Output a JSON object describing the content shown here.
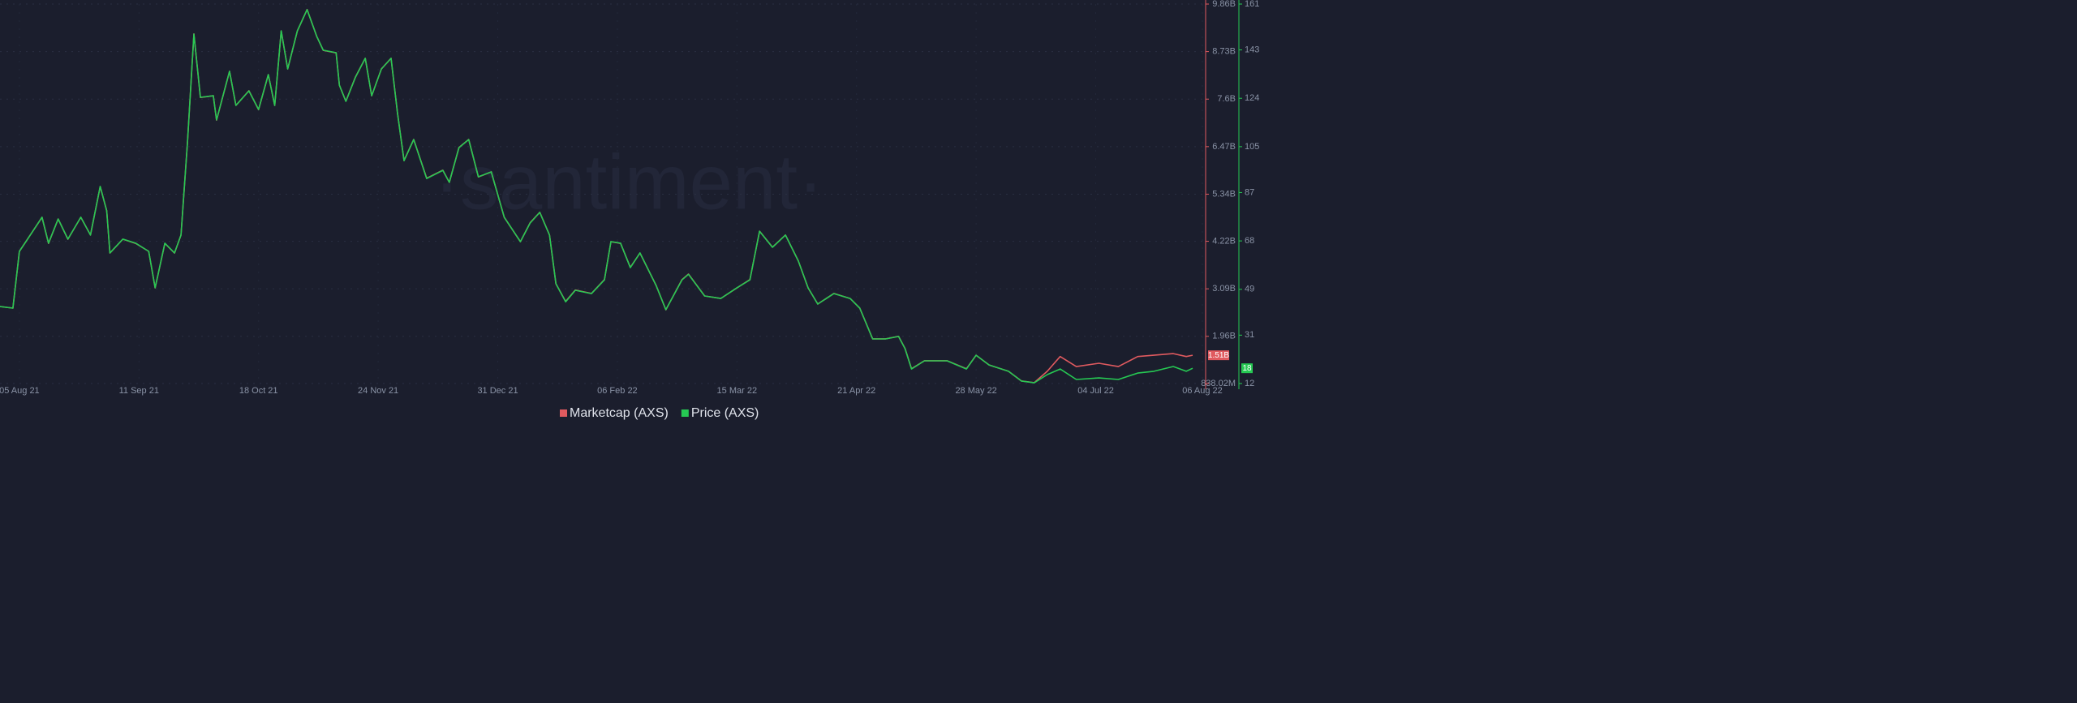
{
  "chart_data": {
    "type": "line",
    "watermark": "·santiment·",
    "x": [
      "2021-07-30",
      "2021-08-03",
      "2021-08-05",
      "2021-08-08",
      "2021-08-12",
      "2021-08-14",
      "2021-08-17",
      "2021-08-20",
      "2021-08-24",
      "2021-08-27",
      "2021-08-30",
      "2021-09-01",
      "2021-09-02",
      "2021-09-06",
      "2021-09-10",
      "2021-09-14",
      "2021-09-16",
      "2021-09-19",
      "2021-09-22",
      "2021-09-24",
      "2021-09-26",
      "2021-09-28",
      "2021-09-30",
      "2021-10-04",
      "2021-10-05",
      "2021-10-09",
      "2021-10-11",
      "2021-10-15",
      "2021-10-18",
      "2021-10-21",
      "2021-10-23",
      "2021-10-25",
      "2021-10-27",
      "2021-10-30",
      "2021-11-02",
      "2021-11-05",
      "2021-11-07",
      "2021-11-11",
      "2021-11-12",
      "2021-11-14",
      "2021-11-17",
      "2021-11-20",
      "2021-11-22",
      "2021-11-25",
      "2021-11-28",
      "2021-11-30",
      "2021-12-02",
      "2021-12-05",
      "2021-12-09",
      "2021-12-14",
      "2021-12-16",
      "2021-12-19",
      "2021-12-22",
      "2021-12-25",
      "2021-12-29",
      "2022-01-02",
      "2022-01-07",
      "2022-01-10",
      "2022-01-13",
      "2022-01-16",
      "2022-01-18",
      "2022-01-21",
      "2022-01-24",
      "2022-01-29",
      "2022-02-02",
      "2022-02-04",
      "2022-02-07",
      "2022-02-10",
      "2022-02-13",
      "2022-02-18",
      "2022-02-21",
      "2022-02-26",
      "2022-02-28",
      "2022-03-05",
      "2022-03-10",
      "2022-03-15",
      "2022-03-19",
      "2022-03-22",
      "2022-03-26",
      "2022-03-30",
      "2022-04-03",
      "2022-04-06",
      "2022-04-09",
      "2022-04-14",
      "2022-04-19",
      "2022-04-22",
      "2022-04-26",
      "2022-04-30",
      "2022-05-04",
      "2022-05-06",
      "2022-05-08",
      "2022-05-12",
      "2022-05-19",
      "2022-05-25",
      "2022-05-28",
      "2022-06-01",
      "2022-06-07",
      "2022-06-11",
      "2022-06-15",
      "2022-06-19",
      "2022-06-23",
      "2022-06-28",
      "2022-07-05",
      "2022-07-11",
      "2022-07-17",
      "2022-07-22",
      "2022-07-28",
      "2022-08-01",
      "2022-08-03"
    ],
    "xlim": [
      "2021-07-30",
      "2022-08-06"
    ],
    "xticks": [
      {
        "value": "2021-08-05",
        "label": "05 Aug 21"
      },
      {
        "value": "2021-09-11",
        "label": "11 Sep 21"
      },
      {
        "value": "2021-10-18",
        "label": "18 Oct 21"
      },
      {
        "value": "2021-11-24",
        "label": "24 Nov 21"
      },
      {
        "value": "2021-12-31",
        "label": "31 Dec 21"
      },
      {
        "value": "2022-02-06",
        "label": "06 Feb 22"
      },
      {
        "value": "2022-03-15",
        "label": "15 Mar 22"
      },
      {
        "value": "2022-04-21",
        "label": "21 Apr 22"
      },
      {
        "value": "2022-05-28",
        "label": "28 May 22"
      },
      {
        "value": "2022-07-04",
        "label": "04 Jul 22"
      },
      {
        "value": "2022-08-06",
        "label": "06 Aug 22"
      }
    ],
    "ylim": [
      838020000,
      9860000000
    ],
    "yticks": [
      {
        "value": 838020000,
        "label": "838.02M"
      },
      {
        "value": 1960000000,
        "label": "1.96B"
      },
      {
        "value": 3090000000,
        "label": "3.09B"
      },
      {
        "value": 4220000000,
        "label": "4.22B"
      },
      {
        "value": 5340000000,
        "label": "5.34B"
      },
      {
        "value": 6470000000,
        "label": "6.47B"
      },
      {
        "value": 7600000000,
        "label": "7.6B"
      },
      {
        "value": 8730000000,
        "label": "8.73B"
      },
      {
        "value": 9860000000,
        "label": "9.86B"
      }
    ],
    "y2lim": [
      12,
      161
    ],
    "y2ticks": [
      12,
      31,
      49,
      68,
      87,
      105,
      124,
      143,
      161
    ],
    "grid": true,
    "legend": "bottom",
    "series": [
      {
        "name": "Marketcap (AXS)",
        "color": "#e05a5f",
        "axis": "y",
        "last_label": "1.51B",
        "values": [
          2670000000,
          2630000000,
          3980000000,
          4330000000,
          4790000000,
          4170000000,
          4750000000,
          4270000000,
          4790000000,
          4370000000,
          5520000000,
          4950000000,
          3940000000,
          4270000000,
          4170000000,
          3980000000,
          3110000000,
          4170000000,
          3940000000,
          4370000000,
          6580000000,
          9150000000,
          7640000000,
          7680000000,
          7100000000,
          8260000000,
          7450000000,
          7800000000,
          7350000000,
          8180000000,
          7450000000,
          9220000000,
          8320000000,
          9220000000,
          9730000000,
          9090000000,
          8760000000,
          8700000000,
          7930000000,
          7550000000,
          8130000000,
          8570000000,
          7680000000,
          8320000000,
          8570000000,
          7260000000,
          6140000000,
          6640000000,
          5720000000,
          5910000000,
          5620000000,
          6450000000,
          6640000000,
          5750000000,
          5870000000,
          4790000000,
          4210000000,
          4660000000,
          4910000000,
          4370000000,
          3210000000,
          2790000000,
          3060000000,
          2980000000,
          3310000000,
          4210000000,
          4170000000,
          3600000000,
          3940000000,
          3170000000,
          2590000000,
          3310000000,
          3440000000,
          2920000000,
          2860000000,
          3110000000,
          3310000000,
          4460000000,
          4080000000,
          4370000000,
          3750000000,
          3110000000,
          2730000000,
          2980000000,
          2860000000,
          2630000000,
          1900000000,
          1900000000,
          1960000000,
          1670000000,
          1190000000,
          1380000000,
          1380000000,
          1190000000,
          1510000000,
          1280000000,
          1130000000,
          900000000,
          860000000,
          1130000000,
          1480000000,
          1240000000,
          1320000000,
          1240000000,
          1480000000,
          1510000000,
          1550000000,
          1480000000,
          1510000000
        ]
      },
      {
        "name": "Price (AXS)",
        "color": "#26c953",
        "axis": "y2",
        "last_label": "18",
        "values": [
          42.2,
          41.6,
          63.9,
          69.6,
          77.3,
          67.1,
          76.6,
          68.7,
          77.3,
          70.3,
          89.4,
          79.8,
          63.3,
          68.7,
          67.1,
          63.9,
          49.6,
          67.1,
          63.3,
          70.3,
          106.9,
          149.2,
          124.4,
          125.0,
          115.5,
          134.6,
          121.2,
          126.9,
          119.6,
          133.3,
          121.2,
          150.5,
          135.5,
          150.5,
          158.8,
          148.3,
          142.9,
          141.9,
          129.2,
          122.8,
          132.3,
          139.7,
          125.0,
          135.5,
          139.7,
          118.0,
          99.5,
          107.8,
          92.5,
          95.7,
          91.0,
          104.6,
          107.8,
          93.2,
          95.1,
          77.3,
          67.7,
          75.0,
          79.2,
          70.3,
          51.2,
          44.1,
          48.6,
          47.3,
          52.7,
          67.7,
          67.1,
          57.5,
          63.3,
          50.5,
          41.0,
          52.7,
          54.9,
          46.4,
          45.4,
          49.6,
          52.7,
          71.8,
          65.5,
          70.3,
          60.1,
          49.6,
          43.2,
          47.3,
          45.4,
          41.6,
          29.5,
          29.5,
          30.5,
          25.7,
          17.7,
          20.9,
          20.9,
          17.7,
          23.1,
          19.3,
          16.8,
          13.0,
          12.3,
          15.5,
          17.7,
          13.6,
          14.2,
          13.6,
          16.1,
          16.8,
          18.7,
          16.8,
          18.0
        ]
      }
    ]
  }
}
